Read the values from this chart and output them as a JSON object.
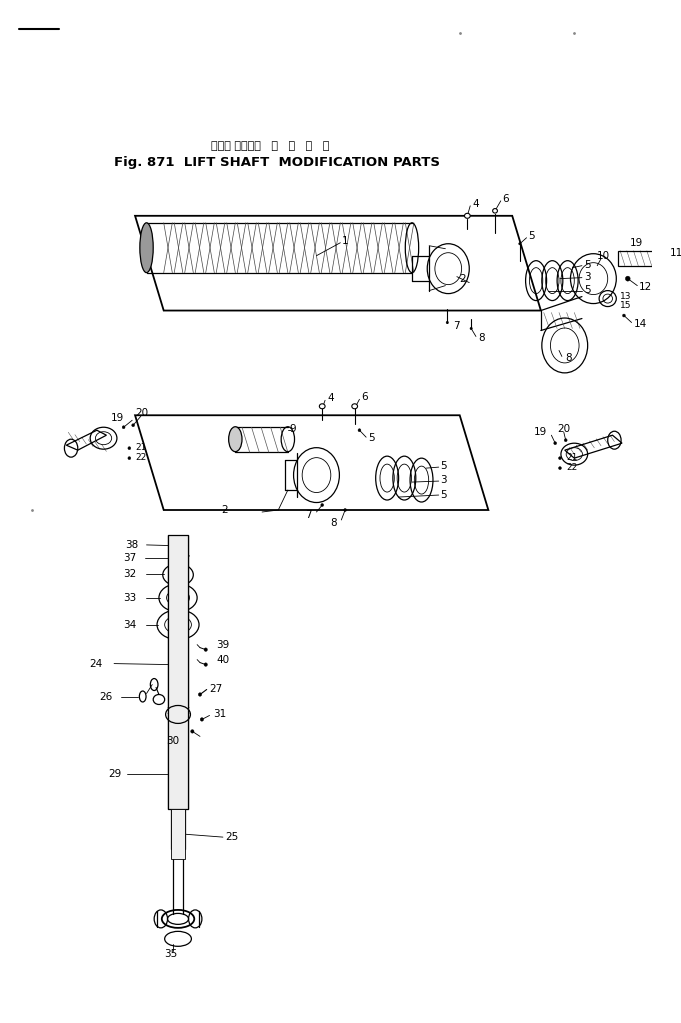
{
  "bg_color": "#ffffff",
  "fig_width": 6.81,
  "fig_height": 10.23,
  "dpi": 100,
  "title_jp": "リフト シャフト   変   更   部   品",
  "title_en": "Fig. 871  LIFT SHAFT  MODIFICATION PARTS"
}
